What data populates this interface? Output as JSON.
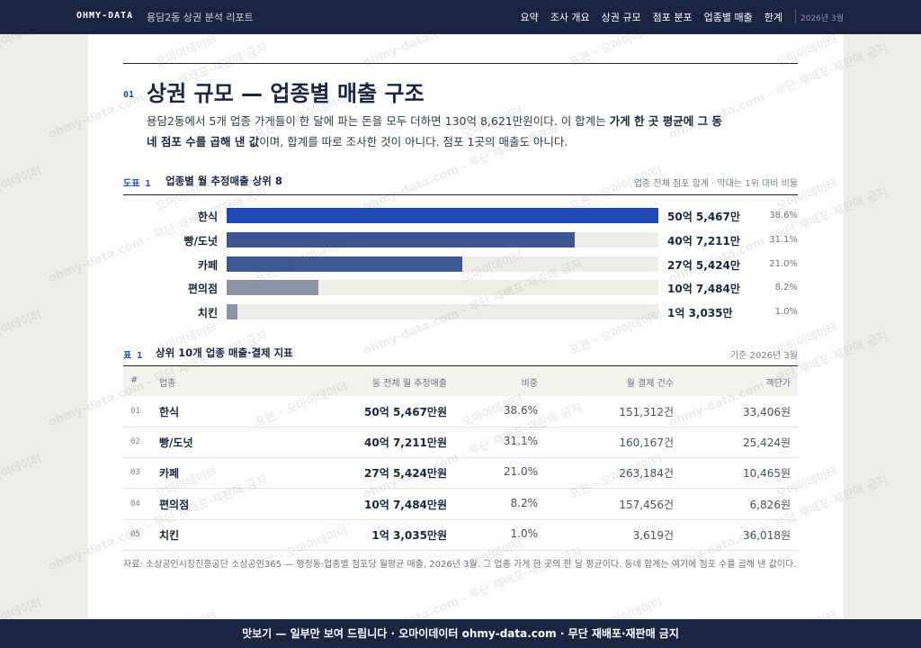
{
  "nav": {
    "brand": "OHMY-DATA",
    "subtitle": "용담2동 상권 분석 리포트",
    "items": [
      "요약",
      "조사 개요",
      "상권 규모",
      "점포 분포",
      "업종별 매출",
      "한계"
    ],
    "date": "2026년 3월"
  },
  "section": {
    "number": "01",
    "title": "상권 규모 — 업종별 매출 구조",
    "lead": [
      "용담2동에서 5개 업종 가게들이 한 달에 파는 돈을 모두 더하면 130억 8,621만원이다. 이 합계는 ",
      "가게 한 곳 평균에 그 동네 점포 수를 곱해 낸 값",
      "이며, 합계를 따로 조사한 것이 아니다. 점포 1곳의 매출도 아니다."
    ]
  },
  "chart_data": {
    "type": "bar",
    "label": "도표 1",
    "title": "업종별 월 추정매출 상위 8",
    "note": "업종 전체 점포 합계 · 막대는 1위 대비 비율",
    "categories": [
      "한식",
      "빵/도넛",
      "카페",
      "편의점",
      "치킨"
    ],
    "values": [
      505467,
      407211,
      275424,
      107484,
      13035
    ],
    "value_labels": [
      "50억 5,467만",
      "40억 7,211만",
      "27억 5,424만",
      "10억 7,484만",
      "1억 3,035만"
    ],
    "share_labels": [
      "38.6%",
      "31.1%",
      "21.0%",
      "8.2%",
      "1.0%"
    ],
    "colors": [
      "#1f47b8",
      "#3d5590",
      "#3f5a93",
      "#8b93a7",
      "#8b93a7"
    ]
  },
  "table": {
    "label": "표 1",
    "title": "상위 10개 업종 매출·결제 지표",
    "note": "기준 2026년 3월",
    "header": [
      "#",
      "업종",
      "동 전체 월 추정매출",
      "비중",
      "월 결제 건수",
      "객단가"
    ],
    "rows": [
      [
        "01",
        "한식",
        "50억 5,467만원",
        "38.6%",
        "151,312건",
        "33,406원"
      ],
      [
        "02",
        "빵/도넛",
        "40억 7,211만원",
        "31.1%",
        "160,167건",
        "25,424원"
      ],
      [
        "03",
        "카페",
        "27억 5,424만원",
        "21.0%",
        "263,184건",
        "10,465원"
      ],
      [
        "04",
        "편의점",
        "10억 7,484만원",
        "8.2%",
        "157,456건",
        "6,826원"
      ],
      [
        "05",
        "치킨",
        "1억 3,035만원",
        "1.0%",
        "3,619건",
        "36,018원"
      ]
    ]
  },
  "source": "자료: 소상공인시장진흥공단 소상공인365 — 행정동·업종별 점포당 월평균 매출, 2026년 3월. 그 업종 가게 한 곳의 한 달 평균이다. 동네 합계는 여기에 점포 수를 곱해 낸 값이다.",
  "footer": "맛보기 — 일부만 보여 드립니다 · 오마이데이터 ohmy-data.com · 무단 재배포·재판매 금지",
  "watermark": [
    "표본 · 오마이데이터",
    "오마이데이터",
    "ohmy-data.com · 무단 재배포·재판매 금지"
  ]
}
